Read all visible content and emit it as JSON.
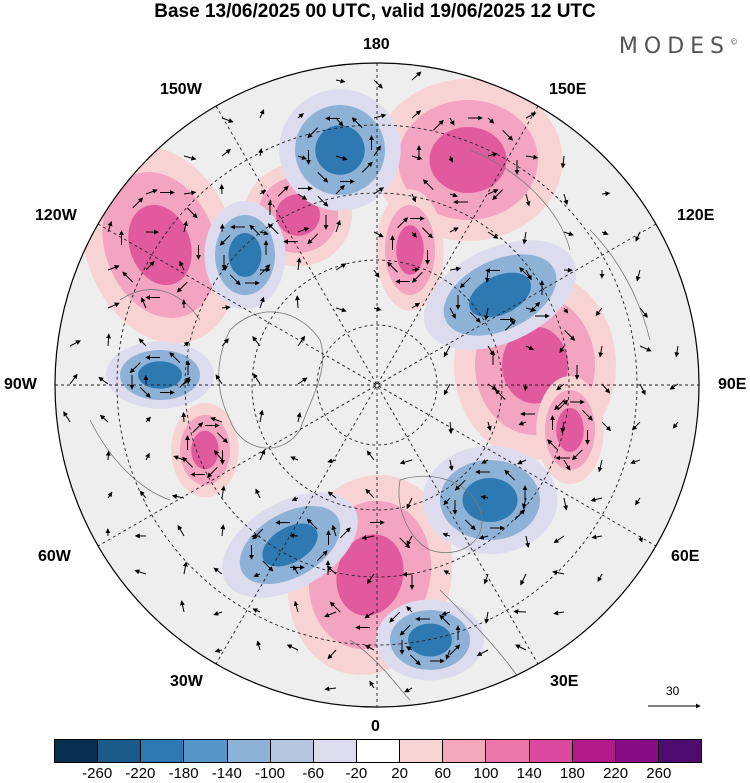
{
  "title": "Base 13/06/2025 00 UTC, valid 19/06/2025 12 UTC",
  "brand": "MODES",
  "brand_mark": "©",
  "longitude_labels": {
    "top": "180",
    "bottom": "0",
    "left": "90W",
    "right": "90E",
    "upper_left_1": "150W",
    "upper_left_2": "120W",
    "upper_right_1": "150E",
    "upper_right_2": "120E",
    "lower_left_1": "60W",
    "lower_left_2": "30W",
    "lower_right_1": "60E",
    "lower_right_2": "30E"
  },
  "vector_scale_label": "30",
  "colorbar": {
    "colors": [
      "#08304e",
      "#1a5b8a",
      "#2f79b3",
      "#5596c6",
      "#8eb2d6",
      "#b6c5e0",
      "#dcdcee",
      "#ffffff",
      "#f8d3d4",
      "#f3a8bc",
      "#ec78aa",
      "#dc4aa0",
      "#b21a8a",
      "#870d86",
      "#4f0a6d"
    ],
    "ticks": [
      "-260",
      "-220",
      "-180",
      "-140",
      "-100",
      "-60",
      "-20",
      "20",
      "60",
      "100",
      "140",
      "180",
      "220",
      "260"
    ]
  },
  "anomaly_colors": {
    "strong_pos": "#e15a9d",
    "pos": "#f2a4c0",
    "weak_pos": "#f8d3d4",
    "strong_neg": "#2f79b3",
    "neg": "#8eb2d6",
    "weak_neg": "#dcdcee"
  }
}
